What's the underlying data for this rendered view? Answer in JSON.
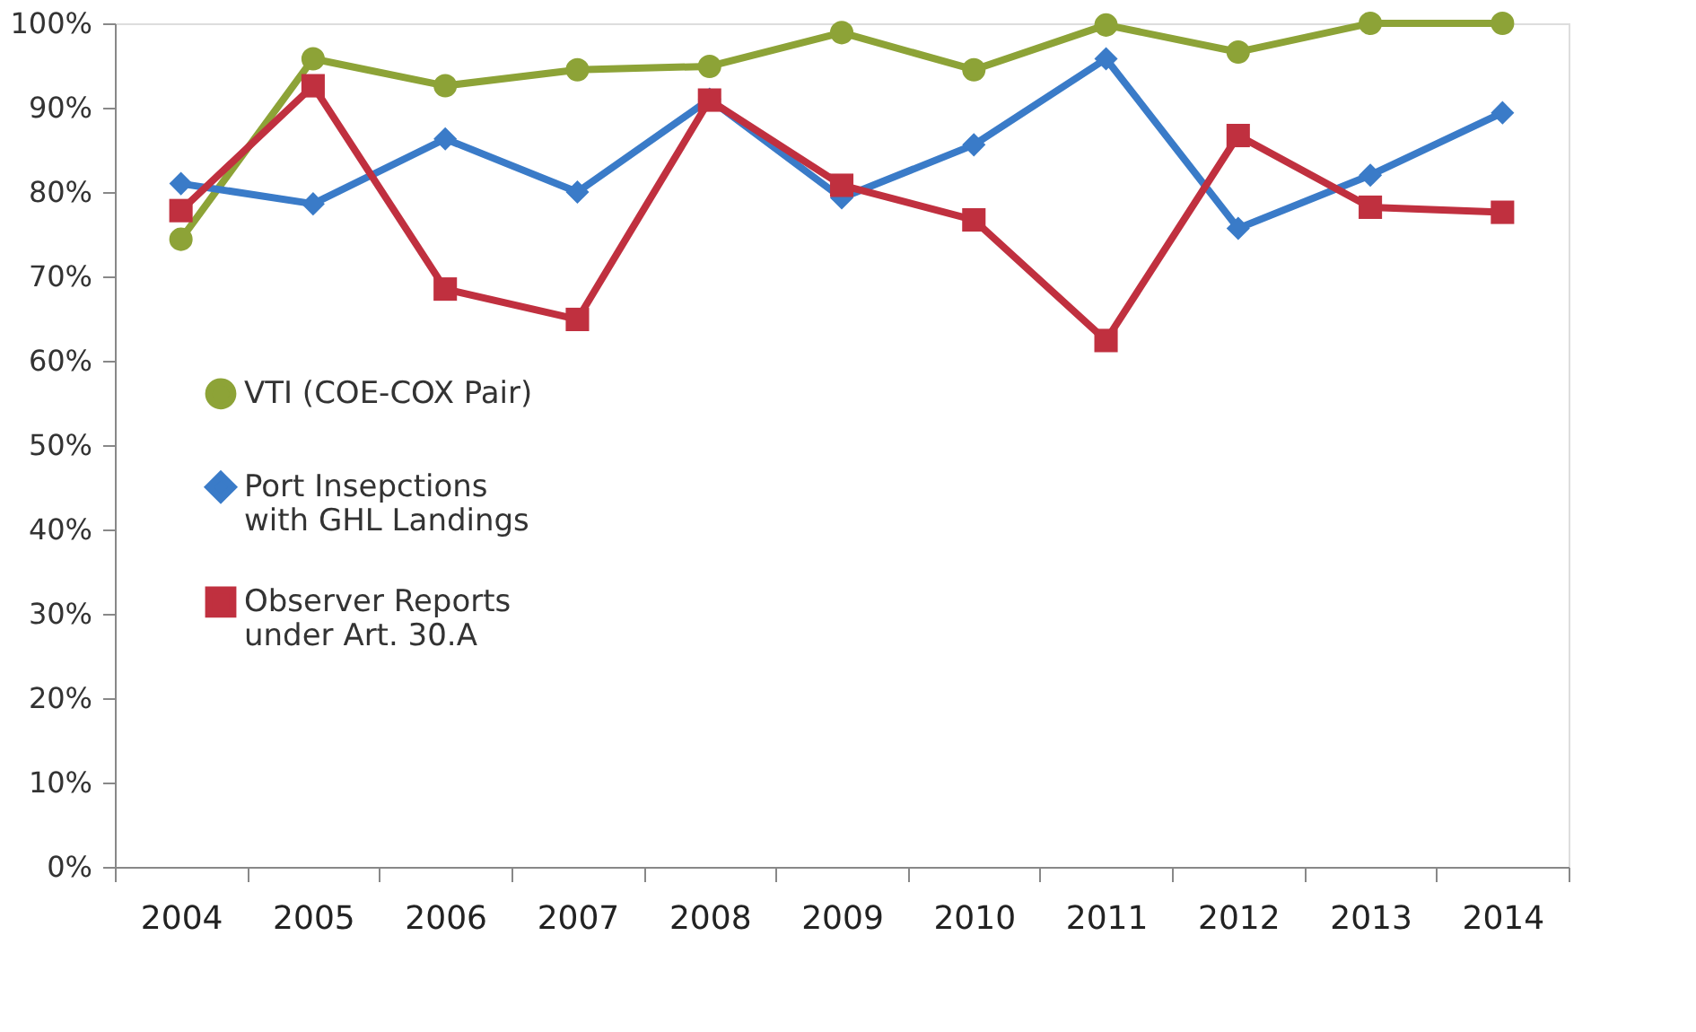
{
  "chart_data": {
    "type": "line",
    "categories": [
      "2004",
      "2005",
      "2006",
      "2007",
      "2008",
      "2009",
      "2010",
      "2011",
      "2012",
      "2013",
      "2014"
    ],
    "series": [
      {
        "name": "VTI (COE-COX Pair)",
        "color": "#8da337",
        "marker": "circle",
        "values": [
          74.4,
          95.8,
          92.6,
          94.5,
          94.9,
          98.9,
          94.5,
          99.8,
          96.6,
          100,
          100
        ]
      },
      {
        "name": "Port Insepctions\nwith GHL Landings",
        "color": "#3a7bc8",
        "marker": "diamond",
        "values": [
          81,
          78.6,
          86.3,
          80,
          91,
          79.3,
          85.6,
          95.8,
          75.7,
          82,
          89.4
        ]
      },
      {
        "name": "Observer Reports\nunder Art. 30.A",
        "color": "#c0303f",
        "marker": "square",
        "values": [
          77.8,
          92.6,
          68.5,
          64.9,
          90.9,
          80.8,
          76.7,
          62.4,
          86.7,
          78.2,
          77.6
        ]
      }
    ],
    "ylim": [
      0,
      100
    ],
    "yticks": [
      {
        "value": 0,
        "label": "0%"
      },
      {
        "value": 10,
        "label": "10%"
      },
      {
        "value": 20,
        "label": "20%"
      },
      {
        "value": 30,
        "label": "30%"
      },
      {
        "value": 40,
        "label": "40%"
      },
      {
        "value": 50,
        "label": "50%"
      },
      {
        "value": 60,
        "label": "60%"
      },
      {
        "value": 70,
        "label": "70%"
      },
      {
        "value": 80,
        "label": "80%"
      },
      {
        "value": 90,
        "label": "90%"
      },
      {
        "value": 100,
        "label": "100%"
      }
    ],
    "grid": false,
    "legend": "left",
    "line_style": "solid"
  }
}
